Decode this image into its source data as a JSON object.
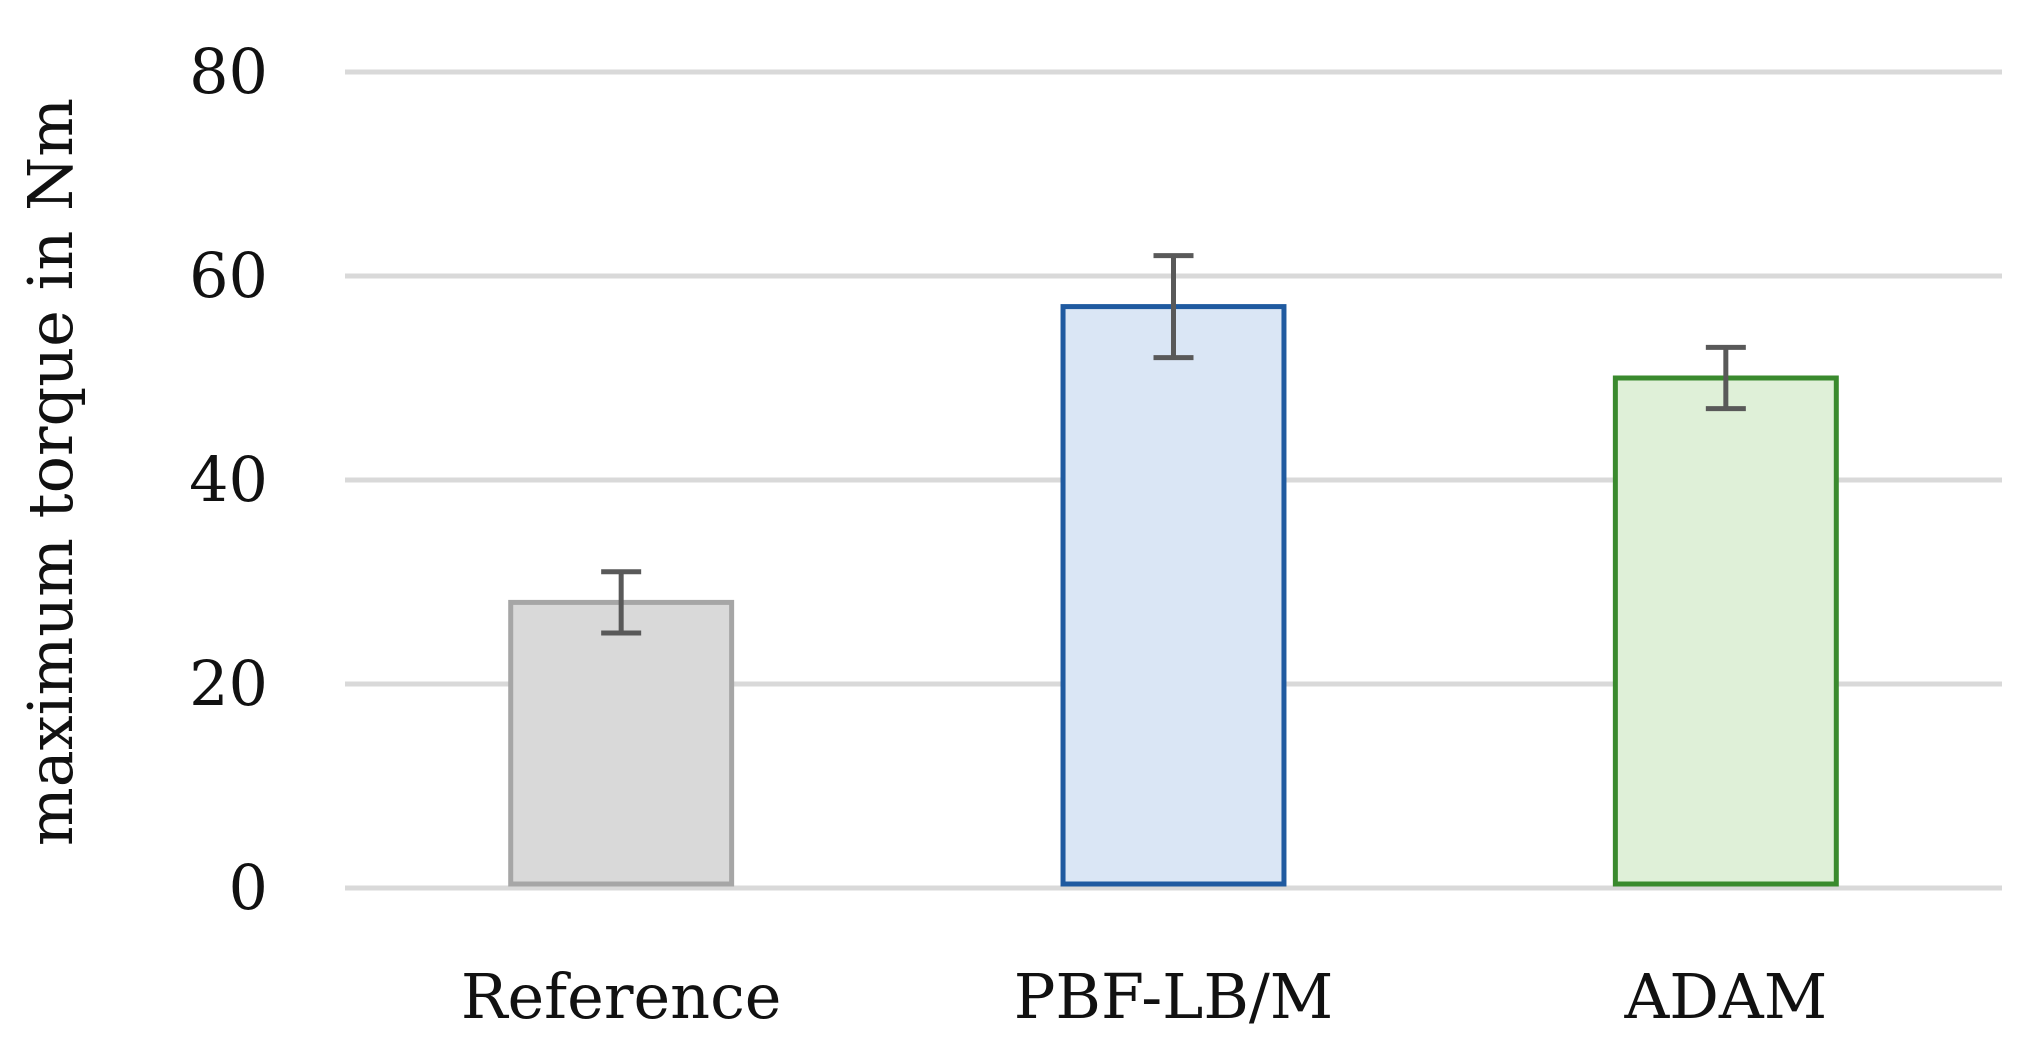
{
  "chart_data": {
    "type": "bar",
    "categories": [
      "Reference",
      "PBF-LB/M",
      "ADAM"
    ],
    "series": [
      {
        "values": [
          28,
          57,
          50
        ],
        "errors": [
          3,
          5,
          3
        ],
        "fill_colors": [
          "#d9d9d9",
          "#dae6f5",
          "#dff0d8"
        ],
        "stroke_colors": [
          "#a6a6a6",
          "#1f5aa0",
          "#3a8a2e"
        ]
      }
    ],
    "title": "",
    "xlabel": "",
    "ylabel": "maximum torque in Nm",
    "ylim": [
      0,
      80
    ],
    "yticks": [
      0,
      20,
      40,
      60,
      80
    ],
    "grid": true,
    "legend": "none"
  }
}
